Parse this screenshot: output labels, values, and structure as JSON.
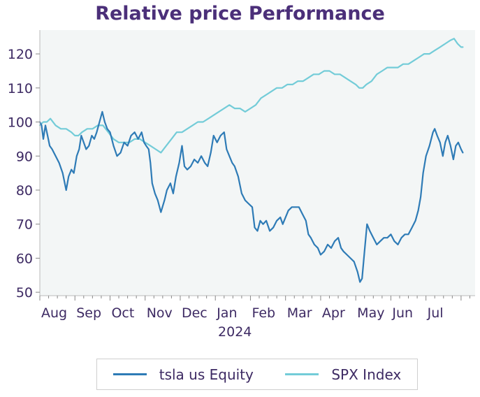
{
  "chart_data": {
    "type": "line",
    "title": "Relative price Performance",
    "x_tick_labels": [
      "Aug",
      "Sep",
      "Oct",
      "Nov",
      "Dec",
      "Jan",
      "Feb",
      "Mar",
      "Apr",
      "May",
      "Jun",
      "Jul"
    ],
    "year_label": "2024",
    "yticks": [
      50,
      60,
      70,
      80,
      90,
      100,
      110,
      120
    ],
    "ylim": [
      49,
      127
    ],
    "xlim": [
      0,
      12.4
    ],
    "grid": false,
    "legend_position": "bottom",
    "series": [
      {
        "name": "tsla us Equity",
        "color": "#2e7bb6",
        "points": [
          [
            0.0,
            100
          ],
          [
            0.05,
            99
          ],
          [
            0.1,
            95
          ],
          [
            0.16,
            99
          ],
          [
            0.22,
            96
          ],
          [
            0.28,
            93
          ],
          [
            0.35,
            92
          ],
          [
            0.45,
            90
          ],
          [
            0.55,
            88
          ],
          [
            0.65,
            85
          ],
          [
            0.75,
            80
          ],
          [
            0.82,
            84
          ],
          [
            0.9,
            86
          ],
          [
            0.97,
            85
          ],
          [
            1.05,
            90
          ],
          [
            1.12,
            92
          ],
          [
            1.18,
            96
          ],
          [
            1.25,
            94
          ],
          [
            1.32,
            92
          ],
          [
            1.4,
            93
          ],
          [
            1.48,
            96
          ],
          [
            1.55,
            95
          ],
          [
            1.62,
            97
          ],
          [
            1.7,
            100
          ],
          [
            1.78,
            103
          ],
          [
            1.85,
            100
          ],
          [
            1.92,
            98
          ],
          [
            2.0,
            97
          ],
          [
            2.1,
            93
          ],
          [
            2.2,
            90
          ],
          [
            2.3,
            91
          ],
          [
            2.4,
            94
          ],
          [
            2.5,
            93
          ],
          [
            2.6,
            96
          ],
          [
            2.7,
            97
          ],
          [
            2.8,
            95
          ],
          [
            2.9,
            97
          ],
          [
            2.97,
            94
          ],
          [
            3.03,
            93
          ],
          [
            3.1,
            92
          ],
          [
            3.15,
            88
          ],
          [
            3.2,
            82
          ],
          [
            3.28,
            79
          ],
          [
            3.36,
            77
          ],
          [
            3.45,
            73.5
          ],
          [
            3.55,
            77
          ],
          [
            3.62,
            80
          ],
          [
            3.72,
            82
          ],
          [
            3.8,
            79
          ],
          [
            3.88,
            84
          ],
          [
            3.97,
            88
          ],
          [
            4.05,
            93
          ],
          [
            4.12,
            87
          ],
          [
            4.2,
            86
          ],
          [
            4.3,
            87
          ],
          [
            4.4,
            89
          ],
          [
            4.5,
            88
          ],
          [
            4.6,
            90
          ],
          [
            4.7,
            88
          ],
          [
            4.78,
            87
          ],
          [
            4.87,
            91
          ],
          [
            4.95,
            96
          ],
          [
            5.05,
            94
          ],
          [
            5.15,
            96
          ],
          [
            5.25,
            97
          ],
          [
            5.32,
            92
          ],
          [
            5.4,
            90
          ],
          [
            5.48,
            88
          ],
          [
            5.55,
            87
          ],
          [
            5.65,
            84
          ],
          [
            5.75,
            79
          ],
          [
            5.85,
            77
          ],
          [
            5.95,
            76
          ],
          [
            6.05,
            75
          ],
          [
            6.12,
            69
          ],
          [
            6.2,
            68
          ],
          [
            6.28,
            71
          ],
          [
            6.36,
            70
          ],
          [
            6.45,
            71
          ],
          [
            6.55,
            68
          ],
          [
            6.65,
            69
          ],
          [
            6.75,
            71
          ],
          [
            6.85,
            72
          ],
          [
            6.92,
            70
          ],
          [
            7.0,
            72
          ],
          [
            7.08,
            74
          ],
          [
            7.18,
            75
          ],
          [
            7.28,
            75
          ],
          [
            7.38,
            75
          ],
          [
            7.48,
            73
          ],
          [
            7.58,
            71
          ],
          [
            7.65,
            67
          ],
          [
            7.72,
            66
          ],
          [
            7.82,
            64
          ],
          [
            7.92,
            63
          ],
          [
            8.0,
            61
          ],
          [
            8.1,
            62
          ],
          [
            8.2,
            64
          ],
          [
            8.3,
            63
          ],
          [
            8.4,
            65
          ],
          [
            8.5,
            66
          ],
          [
            8.58,
            63
          ],
          [
            8.65,
            62
          ],
          [
            8.75,
            61
          ],
          [
            8.85,
            60
          ],
          [
            8.95,
            59
          ],
          [
            9.05,
            56
          ],
          [
            9.12,
            53
          ],
          [
            9.18,
            54
          ],
          [
            9.25,
            62
          ],
          [
            9.32,
            70
          ],
          [
            9.4,
            68
          ],
          [
            9.5,
            66
          ],
          [
            9.6,
            64
          ],
          [
            9.7,
            65
          ],
          [
            9.8,
            66
          ],
          [
            9.9,
            66
          ],
          [
            10.0,
            67
          ],
          [
            10.1,
            65
          ],
          [
            10.2,
            64
          ],
          [
            10.3,
            66
          ],
          [
            10.4,
            67
          ],
          [
            10.5,
            67
          ],
          [
            10.6,
            69
          ],
          [
            10.7,
            71
          ],
          [
            10.78,
            74
          ],
          [
            10.85,
            78
          ],
          [
            10.92,
            85
          ],
          [
            11.0,
            90
          ],
          [
            11.1,
            93
          ],
          [
            11.2,
            97
          ],
          [
            11.25,
            98
          ],
          [
            11.32,
            96
          ],
          [
            11.4,
            94
          ],
          [
            11.48,
            90
          ],
          [
            11.55,
            94
          ],
          [
            11.62,
            96
          ],
          [
            11.7,
            93
          ],
          [
            11.78,
            89
          ],
          [
            11.85,
            93
          ],
          [
            11.92,
            94
          ],
          [
            12.0,
            92
          ],
          [
            12.05,
            91
          ]
        ]
      },
      {
        "name": "SPX Index",
        "color": "#73ccd8",
        "points": [
          [
            0.0,
            99
          ],
          [
            0.1,
            100
          ],
          [
            0.2,
            100
          ],
          [
            0.3,
            101
          ],
          [
            0.45,
            99
          ],
          [
            0.6,
            98
          ],
          [
            0.75,
            98
          ],
          [
            0.9,
            97
          ],
          [
            1.0,
            96
          ],
          [
            1.1,
            96
          ],
          [
            1.2,
            97
          ],
          [
            1.35,
            98
          ],
          [
            1.5,
            98
          ],
          [
            1.65,
            99
          ],
          [
            1.8,
            99
          ],
          [
            1.95,
            97
          ],
          [
            2.1,
            95
          ],
          [
            2.25,
            94
          ],
          [
            2.4,
            94
          ],
          [
            2.55,
            94
          ],
          [
            2.7,
            95
          ],
          [
            2.85,
            95
          ],
          [
            3.0,
            94
          ],
          [
            3.15,
            93
          ],
          [
            3.3,
            92
          ],
          [
            3.45,
            91
          ],
          [
            3.6,
            93
          ],
          [
            3.75,
            95
          ],
          [
            3.9,
            97
          ],
          [
            4.05,
            97
          ],
          [
            4.2,
            98
          ],
          [
            4.35,
            99
          ],
          [
            4.5,
            100
          ],
          [
            4.65,
            100
          ],
          [
            4.8,
            101
          ],
          [
            4.95,
            102
          ],
          [
            5.1,
            103
          ],
          [
            5.25,
            104
          ],
          [
            5.4,
            105
          ],
          [
            5.55,
            104
          ],
          [
            5.7,
            104
          ],
          [
            5.85,
            103
          ],
          [
            6.0,
            104
          ],
          [
            6.15,
            105
          ],
          [
            6.3,
            107
          ],
          [
            6.45,
            108
          ],
          [
            6.6,
            109
          ],
          [
            6.75,
            110
          ],
          [
            6.9,
            110
          ],
          [
            7.05,
            111
          ],
          [
            7.2,
            111
          ],
          [
            7.35,
            112
          ],
          [
            7.5,
            112
          ],
          [
            7.65,
            113
          ],
          [
            7.8,
            114
          ],
          [
            7.95,
            114
          ],
          [
            8.1,
            115
          ],
          [
            8.25,
            115
          ],
          [
            8.4,
            114
          ],
          [
            8.55,
            114
          ],
          [
            8.7,
            113
          ],
          [
            8.85,
            112
          ],
          [
            9.0,
            111
          ],
          [
            9.1,
            110
          ],
          [
            9.2,
            110
          ],
          [
            9.3,
            111
          ],
          [
            9.45,
            112
          ],
          [
            9.6,
            114
          ],
          [
            9.75,
            115
          ],
          [
            9.9,
            116
          ],
          [
            10.05,
            116
          ],
          [
            10.2,
            116
          ],
          [
            10.35,
            117
          ],
          [
            10.5,
            117
          ],
          [
            10.65,
            118
          ],
          [
            10.8,
            119
          ],
          [
            10.95,
            120
          ],
          [
            11.1,
            120
          ],
          [
            11.25,
            121
          ],
          [
            11.4,
            122
          ],
          [
            11.55,
            123
          ],
          [
            11.7,
            124
          ],
          [
            11.8,
            124.5
          ],
          [
            11.9,
            123
          ],
          [
            12.0,
            122
          ],
          [
            12.05,
            122
          ]
        ]
      }
    ]
  }
}
